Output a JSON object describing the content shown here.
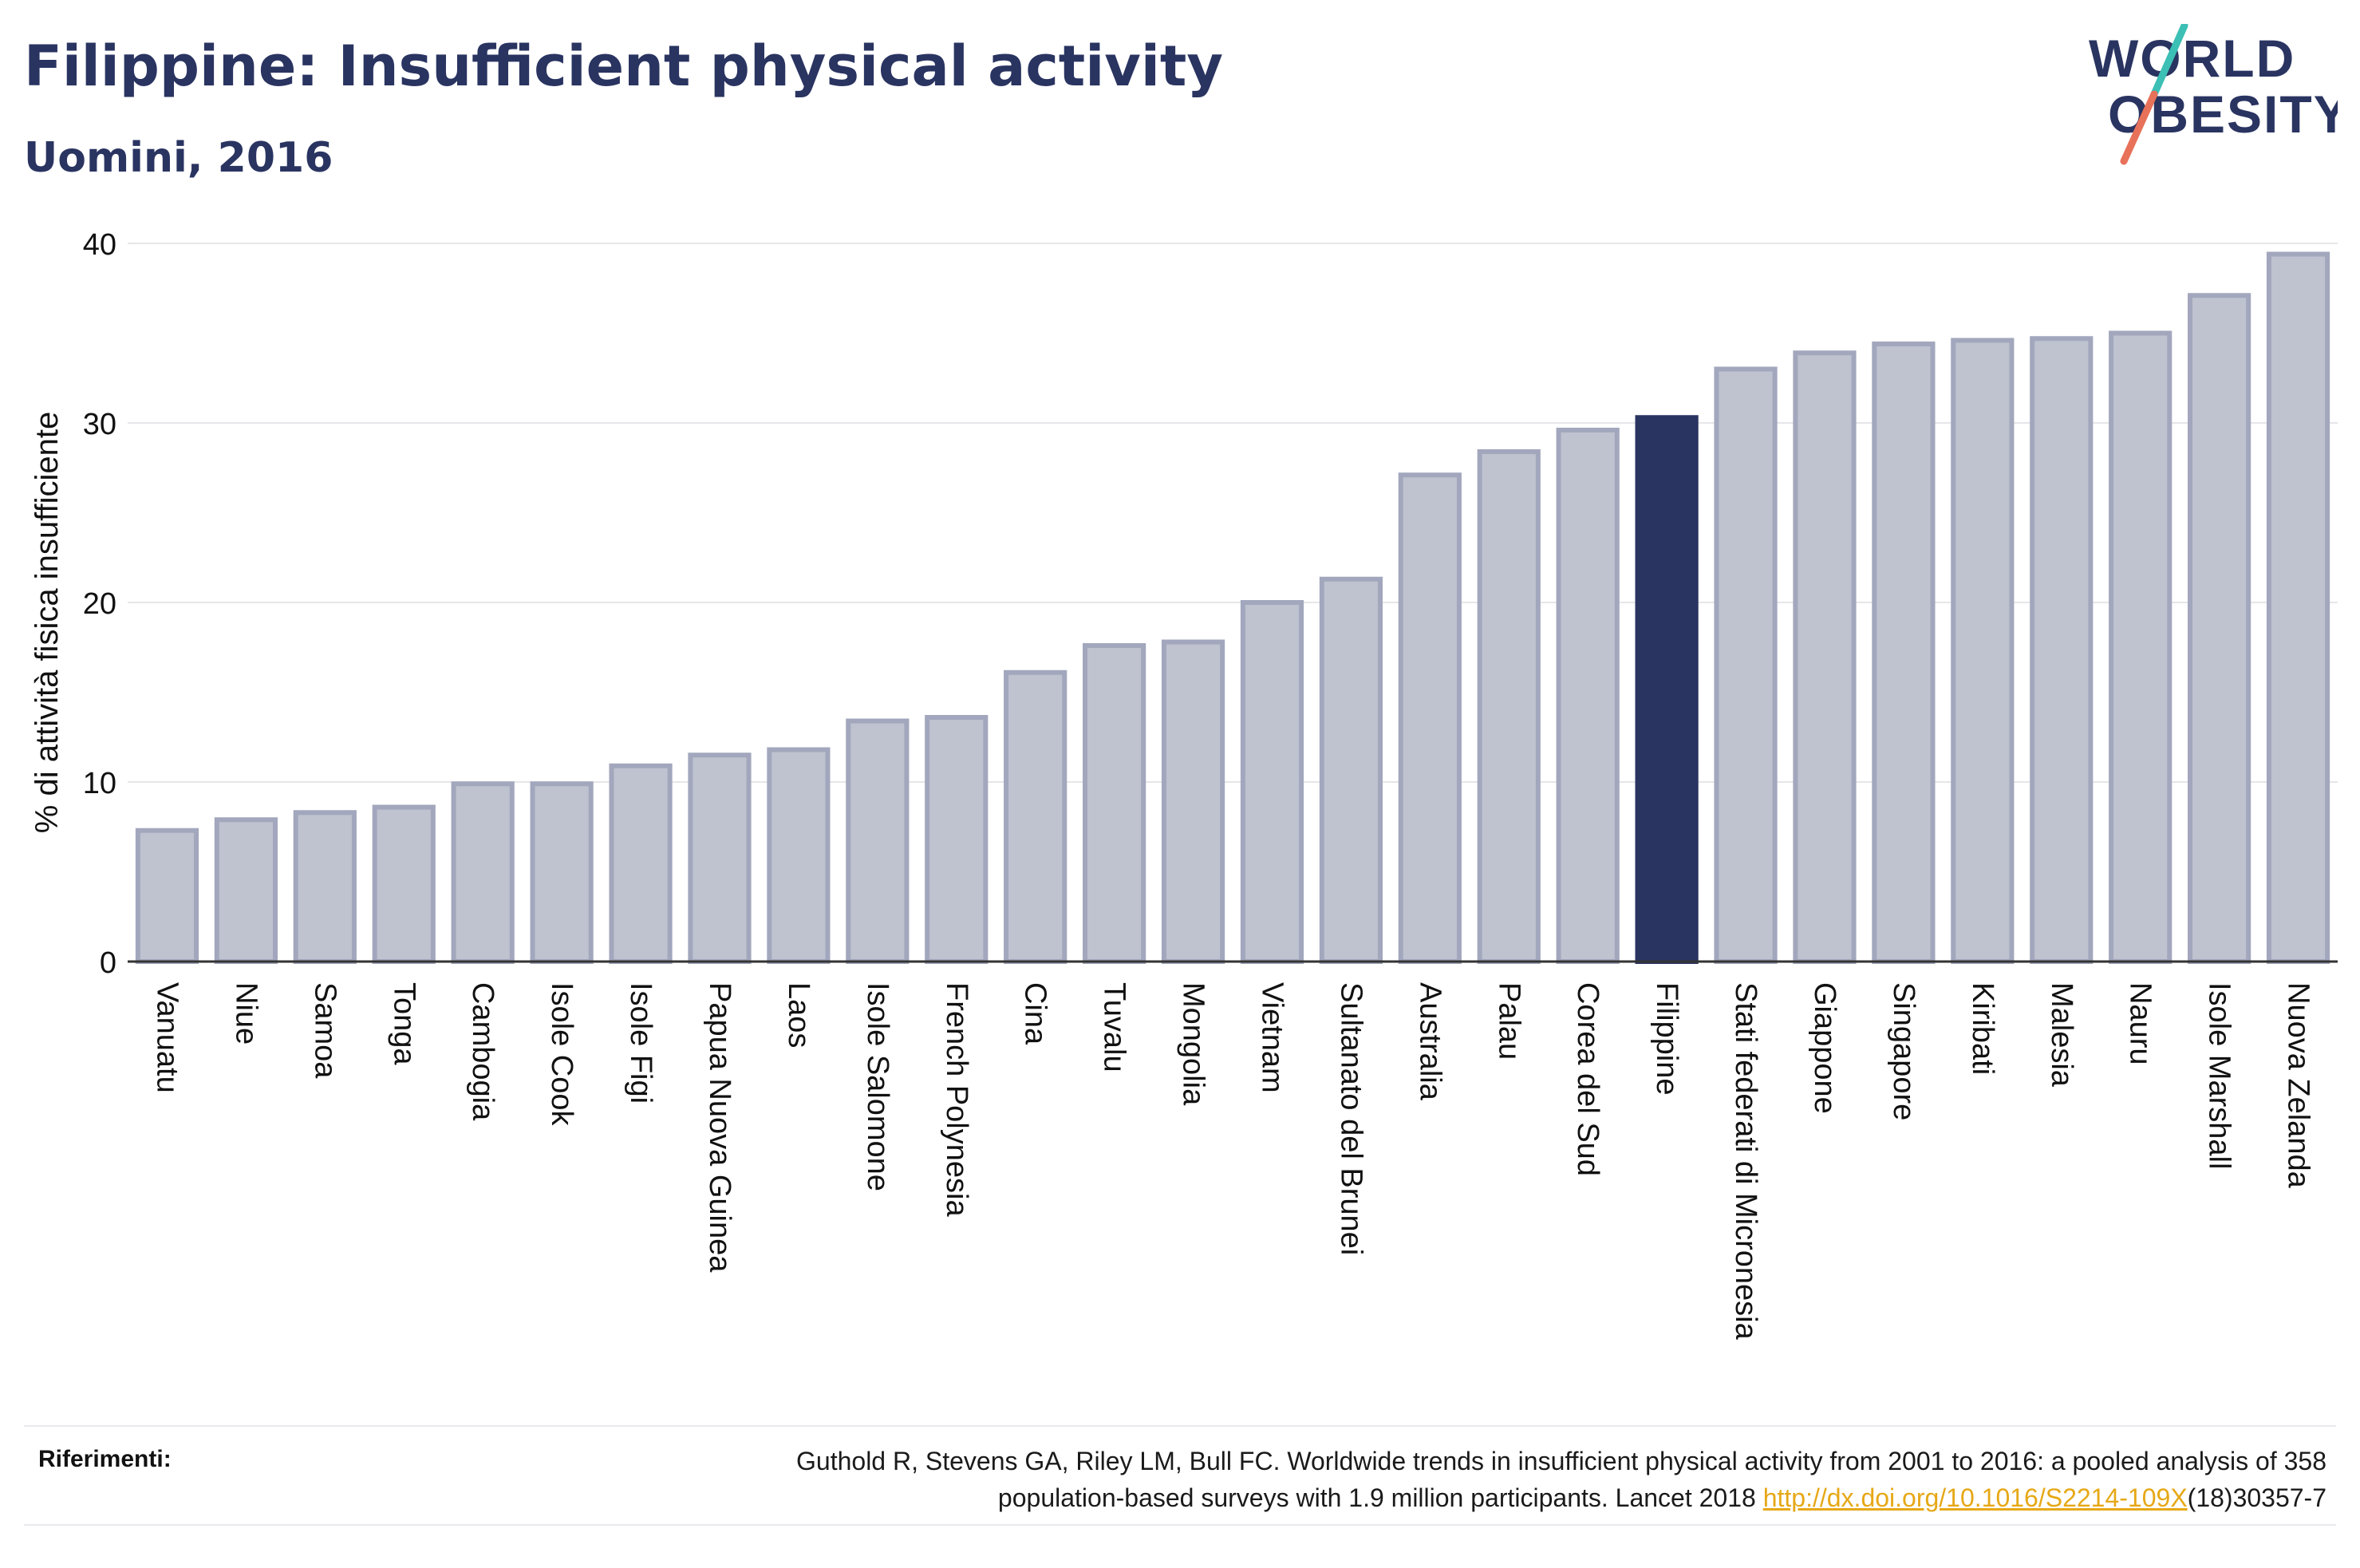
{
  "header": {
    "title": "Filippine: Insufficient physical activity",
    "subtitle": "Uomini, 2016"
  },
  "logo": {
    "line1": "WORLD",
    "line2": "OBESITY"
  },
  "colors": {
    "highlight": "#2a3461",
    "bar_fill": "#bfc2cf",
    "bar_stroke": "#a2a7bd",
    "gridline": "#e6e6ea",
    "logo_teal": "#3cbfb4",
    "logo_coral": "#e8715a",
    "link": "#e6a817"
  },
  "chart_data": {
    "type": "bar",
    "title": "Filippine: Insufficient physical activity",
    "subtitle": "Uomini, 2016",
    "xlabel": "",
    "ylabel": "% di attività fisica insufficiente",
    "ylim": [
      0,
      40
    ],
    "yticks": [
      0,
      10,
      20,
      30,
      40
    ],
    "grid": true,
    "highlight_category": "Filippine",
    "categories": [
      "Vanuatu",
      "Niue",
      "Samoa",
      "Tonga",
      "Cambogia",
      "Isole Cook",
      "Isole Figi",
      "Papua Nuova Guinea",
      "Laos",
      "Isole Salomone",
      "French Polynesia",
      "Cina",
      "Tuvalu",
      "Mongolia",
      "Vietnam",
      "Sultanato del Brunei",
      "Australia",
      "Palau",
      "Corea del Sud",
      "Filippine",
      "Stati federati di Micronesia",
      "Giappone",
      "Singapore",
      "Kiribati",
      "Malesia",
      "Nauru",
      "Isole Marshall",
      "Nuova Zelanda"
    ],
    "values": [
      7.3,
      7.9,
      8.3,
      8.6,
      9.9,
      9.9,
      10.9,
      11.5,
      11.8,
      13.4,
      13.6,
      16.1,
      17.6,
      17.8,
      20.0,
      21.3,
      27.1,
      28.4,
      29.6,
      30.3,
      33.0,
      33.9,
      34.4,
      34.6,
      34.7,
      35.0,
      37.1,
      39.4
    ]
  },
  "references": {
    "label": "Riferimenti:",
    "text_line1": "Guthold R, Stevens GA, Riley LM, Bull FC. Worldwide trends in insufficient physical activity from 2001 to 2016: a pooled analysis of 358",
    "text_line2_prefix": "population-based surveys with 1.9 million participants. Lancet 2018 ",
    "link": "http://dx.doi.org/10.1016/S2214-109X",
    "text_line2_suffix": "(18)30357-7"
  }
}
